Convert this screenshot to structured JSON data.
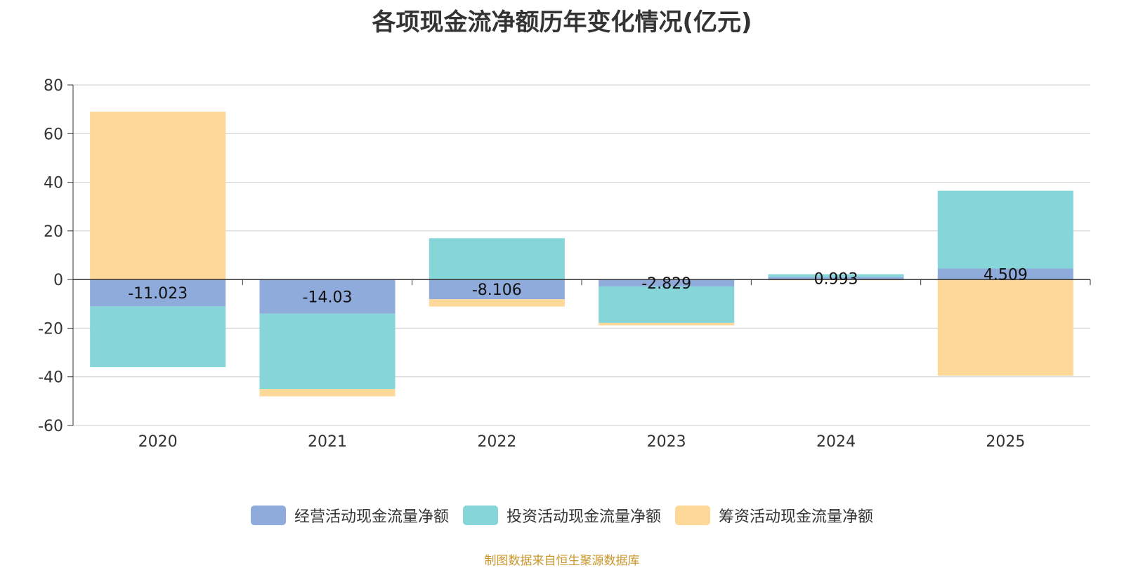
{
  "chart_data": {
    "type": "bar",
    "stacked": true,
    "title": "各项现金流净额历年变化情况(亿元)",
    "categories": [
      "2020",
      "2021",
      "2022",
      "2023",
      "2024",
      "2025"
    ],
    "ylim": [
      -60,
      80
    ],
    "yticks": [
      80,
      60,
      40,
      20,
      0,
      -20,
      -40,
      -60
    ],
    "series": [
      {
        "name": "经营活动现金流量净额",
        "color": "#8eabdb",
        "values": [
          -11.023,
          -14.03,
          -8.106,
          -2.829,
          0.993,
          4.509
        ],
        "labels": [
          "-11.023",
          "-14.03",
          "-8.106",
          "-2.829",
          "0.993",
          "4.509"
        ]
      },
      {
        "name": "投资活动现金流量净额",
        "color": "#86d5d8",
        "values": [
          -25.0,
          -31.0,
          17.0,
          -15.0,
          1.2,
          32.0
        ]
      },
      {
        "name": "筹资活动现金流量净额",
        "color": "#fdd898",
        "values": [
          69.0,
          -3.0,
          -3.0,
          -1.0,
          -0.3,
          -39.5
        ]
      }
    ],
    "legend_position": "bottom",
    "grid": true
  },
  "source_note": "制图数据来自恒生聚源数据库"
}
